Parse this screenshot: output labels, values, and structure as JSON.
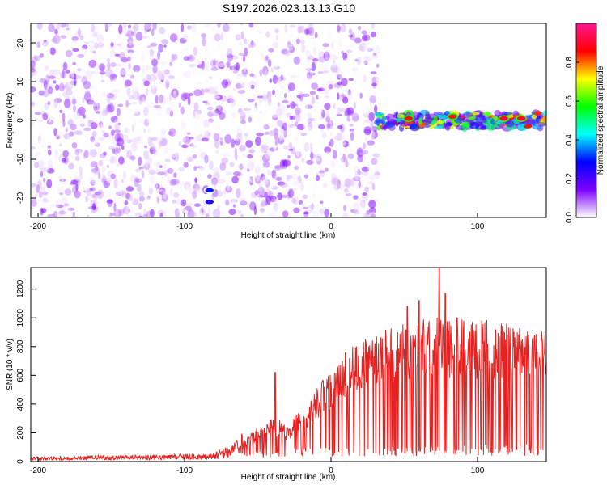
{
  "title": "S197.2026.023.13.13.G10",
  "chart_data": [
    {
      "type": "heatmap",
      "xlabel": "Height of straight line (km)",
      "ylabel": "Frequency (Hz)",
      "xlim": [
        -205,
        147
      ],
      "ylim": [
        -25,
        25
      ],
      "xticks": [
        -200,
        -100,
        0,
        100
      ],
      "yticks": [
        -20,
        -10,
        0,
        10,
        20
      ],
      "grid": false,
      "colorbar": {
        "label": "Normalized spectral amplitude",
        "range": [
          0,
          1
        ],
        "ticks": [
          0.0,
          0.2,
          0.4,
          0.6,
          0.8
        ],
        "colormap": "rainbow",
        "stops": [
          "#ffffff",
          "#7f00ff",
          "#0000ff",
          "#00ffff",
          "#00ff00",
          "#ffff00",
          "#ff0000",
          "#ff1493"
        ]
      },
      "regions": [
        {
          "x_from": -205,
          "x_to": 32,
          "freq_band": [
            -25,
            25
          ],
          "pattern": "scattered noise",
          "amplitude": [
            0.0,
            0.15
          ]
        },
        {
          "x_from": 32,
          "x_to": 147,
          "freq_center": 0,
          "freq_band": [
            -2,
            2
          ],
          "pattern": "carrier line",
          "amplitude": [
            0.15,
            0.9
          ]
        }
      ],
      "features": [
        {
          "x": -83,
          "freq": -18,
          "amplitude": 0.3
        },
        {
          "x": -83,
          "freq": -21,
          "amplitude": 0.25
        },
        {
          "x": 53,
          "freq": 0.5,
          "amplitude": 0.85
        },
        {
          "x": 83,
          "freq": 1,
          "amplitude": 0.85
        },
        {
          "x": 118,
          "freq": 0.5,
          "amplitude": 0.9
        },
        {
          "x": 130,
          "freq": 0.5,
          "amplitude": 0.9
        }
      ]
    },
    {
      "type": "line",
      "xlabel": "Height of straight line (km)",
      "ylabel": "SNR (10 * v/v)",
      "xlim": [
        -205,
        147
      ],
      "ylim": [
        0,
        1350
      ],
      "xticks": [
        -200,
        -100,
        0,
        100
      ],
      "yticks": [
        0,
        200,
        400,
        600,
        800,
        1000,
        1200
      ],
      "grid": false,
      "series": [
        {
          "color": "#e8201f",
          "x": [
            -205,
            -190,
            -175,
            -160,
            -145,
            -130,
            -115,
            -100,
            -90,
            -80,
            -75,
            -70,
            -65,
            -60,
            -55,
            -50,
            -45,
            -40,
            -35,
            -30,
            -25,
            -20,
            -15,
            -10,
            -5,
            0,
            5,
            10,
            15,
            20,
            25,
            30,
            35,
            40,
            45,
            50,
            55,
            60,
            65,
            70,
            75,
            80,
            85,
            90,
            95,
            100,
            105,
            110,
            115,
            120,
            125,
            130,
            135,
            140,
            145,
            147
          ],
          "values": [
            20,
            25,
            22,
            28,
            25,
            30,
            28,
            35,
            30,
            40,
            50,
            70,
            90,
            130,
            170,
            200,
            220,
            250,
            240,
            200,
            260,
            300,
            350,
            420,
            480,
            520,
            600,
            640,
            680,
            700,
            720,
            740,
            760,
            780,
            790,
            800,
            820,
            840,
            820,
            830,
            850,
            820,
            830,
            840,
            810,
            820,
            830,
            800,
            810,
            815,
            800,
            810,
            805,
            800,
            815,
            820
          ]
        }
      ],
      "envelope": {
        "x_from": -60,
        "x_to": 147,
        "lower": [
          {
            "x": -60,
            "y": 40
          },
          {
            "x": -40,
            "y": 60
          },
          {
            "x": -10,
            "y": 70
          },
          {
            "x": 0,
            "y": 60
          },
          {
            "x": 40,
            "y": 70
          },
          {
            "x": 80,
            "y": 75
          },
          {
            "x": 120,
            "y": 80
          },
          {
            "x": 147,
            "y": 80
          }
        ]
      },
      "peaks": [
        {
          "x": -38,
          "y": 620
        },
        {
          "x": 52,
          "y": 1080
        },
        {
          "x": 60,
          "y": 1120
        },
        {
          "x": 74,
          "y": 1350
        },
        {
          "x": 78,
          "y": 1170
        },
        {
          "x": 86,
          "y": 1000
        }
      ]
    }
  ]
}
